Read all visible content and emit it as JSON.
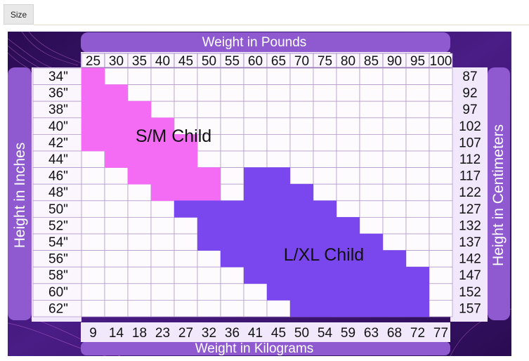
{
  "tab": {
    "label": "Size"
  },
  "chart": {
    "top_title": "Weight in Pounds",
    "bottom_title": "Weight in Kilograms",
    "left_title": "Height in Inches",
    "right_title": "Height in Centimeters",
    "regions": [
      {
        "label": "S/M  Child",
        "color": "#f46cf4"
      },
      {
        "label": "L/XL  Child",
        "color": "#7a47ee"
      }
    ]
  },
  "chart_data": {
    "type": "table",
    "columns_pounds": [
      "25",
      "30",
      "35",
      "40",
      "45",
      "50",
      "55",
      "60",
      "65",
      "70",
      "75",
      "80",
      "85",
      "90",
      "95",
      "100"
    ],
    "columns_kilograms": [
      "9",
      "14",
      "18",
      "23",
      "27",
      "32",
      "36",
      "41",
      "45",
      "50",
      "54",
      "59",
      "63",
      "68",
      "72",
      "77"
    ],
    "rows_inches": [
      "34\"",
      "36\"",
      "38\"",
      "40\"",
      "42\"",
      "44\"",
      "46\"",
      "48\"",
      "50\"",
      "52\"",
      "54\"",
      "56\"",
      "58\"",
      "60\"",
      "62\""
    ],
    "rows_centimeters": [
      "87",
      "92",
      "97",
      "102",
      "107",
      "112",
      "117",
      "122",
      "127",
      "132",
      "137",
      "142",
      "147",
      "152",
      "157"
    ],
    "sm_child_cells": [
      [
        0,
        0,
        1
      ],
      [
        1,
        0,
        2
      ],
      [
        2,
        0,
        3
      ],
      [
        3,
        0,
        4
      ],
      [
        4,
        0,
        5
      ],
      [
        5,
        1,
        5
      ],
      [
        6,
        2,
        6
      ],
      [
        7,
        3,
        6
      ]
    ],
    "lxl_child_cells": [
      [
        6,
        7,
        9
      ],
      [
        7,
        7,
        10
      ],
      [
        8,
        4,
        11
      ],
      [
        9,
        5,
        12
      ],
      [
        10,
        5,
        13
      ],
      [
        11,
        6,
        14
      ],
      [
        12,
        7,
        15
      ],
      [
        13,
        8,
        15
      ],
      [
        14,
        9,
        15
      ]
    ]
  }
}
